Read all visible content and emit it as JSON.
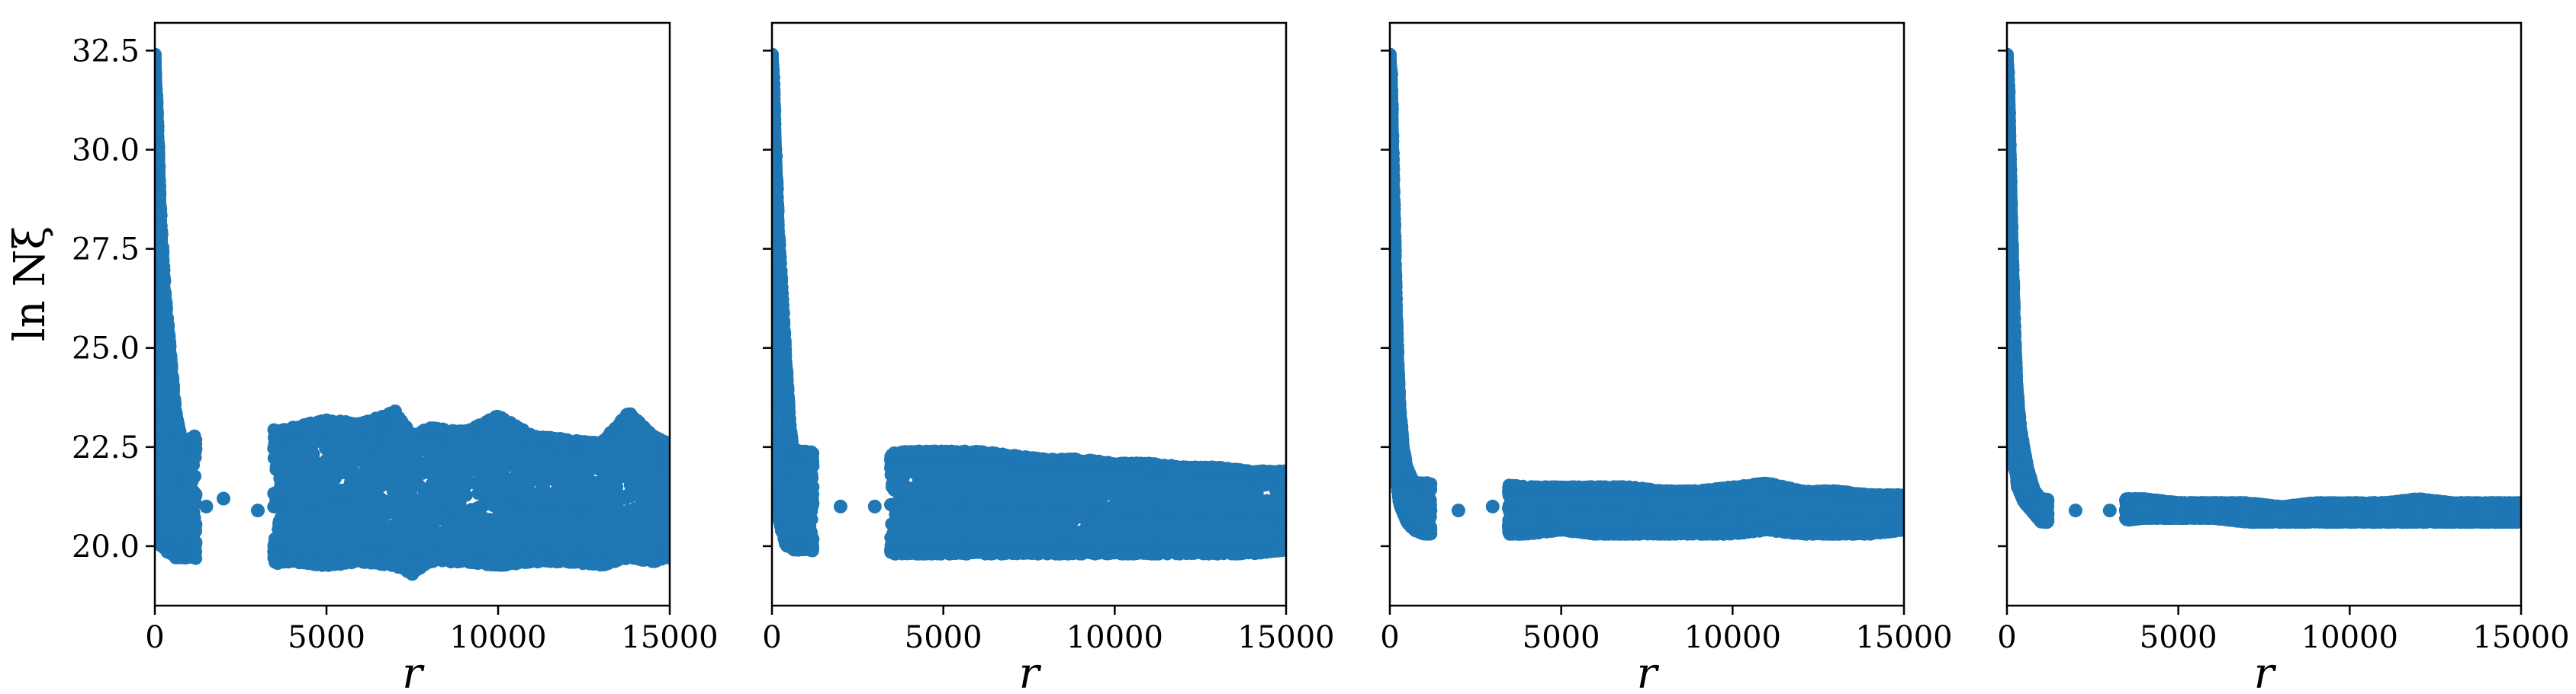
{
  "chart_data": [
    {
      "type": "scatter",
      "panel": 1,
      "xlabel": "r",
      "ylabel": "ln Nξ",
      "xlim": [
        0,
        15000
      ],
      "ylim": [
        18.5,
        33.2
      ],
      "xticks": [
        0,
        5000,
        10000,
        15000
      ],
      "yticks": [
        20.0,
        22.5,
        25.0,
        27.5,
        30.0,
        32.5
      ],
      "ytick_labels_shown": true,
      "grid": false,
      "marker_color": "#1f77b4",
      "series": [
        {
          "x": [
            0,
            50,
            100,
            150,
            200,
            300,
            400,
            500,
            600,
            700,
            800,
            1000,
            1500,
            2000,
            3000,
            4000,
            5000,
            6000,
            7000,
            7500,
            8000,
            9000,
            10000,
            11000,
            12000,
            13000,
            13800,
            14500,
            15000
          ],
          "y": [
            32.4,
            31.0,
            30.0,
            28.5,
            27.5,
            26.0,
            25.0,
            24.0,
            23.0,
            22.5,
            22.0,
            21.5,
            21.0,
            21.2,
            20.9,
            21.1,
            21.0,
            21.3,
            23.4,
            19.3,
            21.0,
            20.8,
            21.2,
            21.0,
            21.0,
            20.9,
            23.3,
            21.0,
            22.5
          ],
          "band_low": [
            21.5,
            21.0,
            20.5,
            20.0,
            20.0,
            19.9,
            19.8,
            19.8,
            19.7,
            19.7,
            19.7,
            19.7,
            19.6,
            19.6,
            19.5,
            19.6,
            19.5,
            19.6,
            19.5,
            19.3,
            19.6,
            19.6,
            19.5,
            19.6,
            19.6,
            19.5,
            19.7,
            19.6,
            19.7
          ],
          "band_high": [
            32.4,
            31.5,
            30.5,
            29.0,
            28.0,
            26.5,
            25.5,
            24.5,
            23.5,
            23.0,
            22.7,
            22.7,
            23.0,
            23.4,
            22.9,
            23.0,
            23.2,
            23.1,
            23.4,
            22.8,
            23.0,
            22.9,
            23.3,
            22.8,
            22.7,
            22.6,
            23.4,
            22.8,
            22.6
          ]
        }
      ]
    },
    {
      "type": "scatter",
      "panel": 2,
      "xlabel": "r",
      "ylabel": "",
      "xlim": [
        0,
        15000
      ],
      "ylim": [
        18.5,
        33.2
      ],
      "xticks": [
        0,
        5000,
        10000,
        15000
      ],
      "yticks": [
        20.0,
        22.5,
        25.0,
        27.5,
        30.0,
        32.5
      ],
      "ytick_labels_shown": false,
      "grid": false,
      "marker_color": "#1f77b4",
      "series": [
        {
          "x": [
            0,
            50,
            100,
            200,
            300,
            400,
            500,
            600,
            800,
            1000,
            2000,
            3000,
            4000,
            5000,
            6000,
            7000,
            8000,
            9000,
            10000,
            11000,
            12000,
            13000,
            14000,
            15000
          ],
          "y": [
            32.4,
            31.5,
            30.0,
            27.5,
            26.0,
            24.5,
            23.0,
            22.0,
            21.5,
            21.1,
            21.0,
            21.0,
            21.1,
            21.0,
            21.0,
            20.9,
            21.0,
            20.9,
            20.9,
            20.8,
            20.8,
            20.8,
            20.8,
            20.7
          ],
          "band_low": [
            22.0,
            21.5,
            21.0,
            20.7,
            20.3,
            20.0,
            20.0,
            19.9,
            19.9,
            19.9,
            19.8,
            19.8,
            19.8,
            19.8,
            19.8,
            19.8,
            19.8,
            19.8,
            19.8,
            19.8,
            19.8,
            19.8,
            19.8,
            19.9
          ],
          "band_high": [
            32.4,
            32.0,
            30.5,
            28.0,
            26.5,
            25.0,
            23.5,
            22.5,
            22.4,
            22.4,
            22.3,
            22.3,
            22.4,
            22.4,
            22.4,
            22.3,
            22.2,
            22.2,
            22.1,
            22.1,
            22.0,
            22.0,
            21.9,
            21.9
          ]
        }
      ]
    },
    {
      "type": "scatter",
      "panel": 3,
      "xlabel": "r",
      "ylabel": "",
      "xlim": [
        0,
        15000
      ],
      "ylim": [
        18.5,
        33.2
      ],
      "xticks": [
        0,
        5000,
        10000,
        15000
      ],
      "yticks": [
        20.0,
        22.5,
        25.0,
        27.5,
        30.0,
        32.5
      ],
      "ytick_labels_shown": false,
      "grid": false,
      "marker_color": "#1f77b4",
      "series": [
        {
          "x": [
            0,
            50,
            100,
            150,
            200,
            250,
            300,
            400,
            500,
            700,
            1000,
            2000,
            3000,
            4000,
            5000,
            6000,
            7000,
            8000,
            9000,
            10000,
            11000,
            12000,
            13000,
            14000,
            15000
          ],
          "y": [
            32.4,
            31.5,
            29.0,
            27.0,
            25.5,
            24.0,
            23.0,
            22.0,
            21.3,
            21.0,
            20.9,
            20.9,
            21.0,
            20.9,
            20.9,
            20.9,
            20.9,
            20.8,
            20.8,
            20.9,
            20.9,
            20.8,
            20.8,
            20.8,
            20.7
          ],
          "band_low": [
            23.0,
            22.5,
            22.0,
            21.7,
            21.5,
            21.2,
            21.0,
            20.8,
            20.6,
            20.4,
            20.3,
            20.3,
            20.3,
            20.3,
            20.4,
            20.3,
            20.3,
            20.3,
            20.3,
            20.3,
            20.4,
            20.3,
            20.3,
            20.3,
            20.4
          ],
          "band_high": [
            32.4,
            32.0,
            30.0,
            28.0,
            26.0,
            24.5,
            23.5,
            22.5,
            22.0,
            21.6,
            21.6,
            21.6,
            21.6,
            21.5,
            21.5,
            21.5,
            21.5,
            21.4,
            21.4,
            21.5,
            21.6,
            21.4,
            21.4,
            21.3,
            21.3
          ]
        }
      ]
    },
    {
      "type": "scatter",
      "panel": 4,
      "xlabel": "r",
      "ylabel": "",
      "xlim": [
        0,
        15000
      ],
      "ylim": [
        18.5,
        33.2
      ],
      "xticks": [
        0,
        5000,
        10000,
        15000
      ],
      "yticks": [
        20.0,
        22.5,
        25.0,
        27.5,
        30.0,
        32.5
      ],
      "ytick_labels_shown": false,
      "grid": false,
      "marker_color": "#1f77b4",
      "series": [
        {
          "x": [
            0,
            50,
            100,
            150,
            200,
            250,
            300,
            400,
            500,
            600,
            800,
            1000,
            2000,
            3000,
            4000,
            5000,
            6000,
            7000,
            8000,
            9000,
            10000,
            11000,
            12000,
            13000,
            14000,
            15000
          ],
          "y": [
            32.4,
            31.5,
            29.5,
            27.5,
            26.0,
            24.5,
            23.5,
            22.5,
            22.0,
            21.5,
            21.0,
            20.8,
            20.9,
            20.9,
            20.9,
            20.9,
            20.9,
            20.9,
            20.8,
            20.8,
            20.8,
            20.8,
            20.9,
            20.9,
            20.9,
            20.9
          ],
          "band_low": [
            24.0,
            23.5,
            23.0,
            22.5,
            22.0,
            21.8,
            21.5,
            21.3,
            21.1,
            21.0,
            20.8,
            20.6,
            20.6,
            20.6,
            20.7,
            20.7,
            20.7,
            20.6,
            20.6,
            20.6,
            20.6,
            20.6,
            20.6,
            20.6,
            20.6,
            20.6
          ],
          "band_high": [
            32.4,
            32.0,
            30.0,
            28.0,
            26.5,
            25.0,
            24.0,
            23.0,
            22.5,
            22.0,
            21.4,
            21.2,
            21.1,
            21.2,
            21.2,
            21.1,
            21.1,
            21.1,
            21.0,
            21.1,
            21.1,
            21.1,
            21.2,
            21.1,
            21.1,
            21.1
          ]
        }
      ]
    }
  ]
}
